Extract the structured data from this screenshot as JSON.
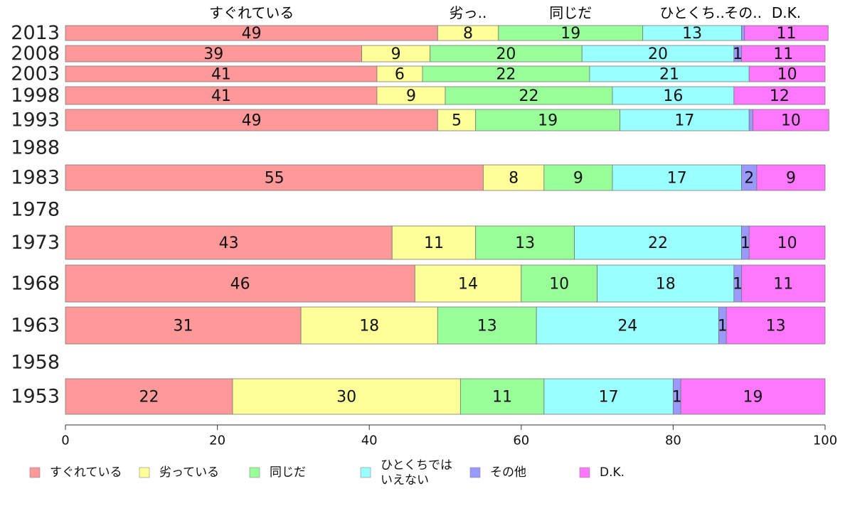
{
  "chart_data": {
    "type": "bar",
    "orientation": "horizontal",
    "stacked": true,
    "categories": [
      "2013",
      "2008",
      "2003",
      "1998",
      "1993",
      "1988",
      "1983",
      "1978",
      "1973",
      "1968",
      "1963",
      "1958",
      "1953"
    ],
    "top_labels": [
      "すぐれている",
      "劣っ..",
      "同じだ",
      "ひとくち..",
      "その..",
      "D.K."
    ],
    "series": [
      {
        "name": "すぐれている",
        "color": "#ff9999",
        "values": [
          49,
          39,
          41,
          41,
          49,
          null,
          55,
          null,
          43,
          46,
          31,
          null,
          22
        ]
      },
      {
        "name": "劣っている",
        "color": "#ffff99",
        "values": [
          8,
          9,
          6,
          9,
          5,
          null,
          8,
          null,
          11,
          14,
          18,
          null,
          30
        ]
      },
      {
        "name": "同じだ",
        "color": "#99ff99",
        "values": [
          19,
          20,
          22,
          22,
          19,
          null,
          9,
          null,
          13,
          10,
          13,
          null,
          11
        ]
      },
      {
        "name": "ひとくちではいえない",
        "color": "#99ffff",
        "values": [
          13,
          20,
          21,
          16,
          17,
          null,
          17,
          null,
          22,
          18,
          24,
          null,
          17
        ]
      },
      {
        "name": "その他",
        "color": "#9999ff",
        "values": [
          0.4,
          1,
          0,
          0,
          0.5,
          null,
          2,
          null,
          1,
          1,
          1,
          null,
          1
        ]
      },
      {
        "name": "D.K.",
        "color": "#ff77ff",
        "values": [
          11,
          11,
          10,
          12,
          10,
          null,
          9,
          null,
          10,
          11,
          13,
          null,
          19
        ]
      }
    ],
    "segment_labels": [
      [
        "49",
        "8",
        "19",
        "13",
        "",
        "11"
      ],
      [
        "39",
        "9",
        "20",
        "20",
        "1",
        "11"
      ],
      [
        "41",
        "6",
        "22",
        "21",
        "",
        "10"
      ],
      [
        "41",
        "9",
        "22",
        "16",
        "",
        "12"
      ],
      [
        "49",
        "5",
        "19",
        "17",
        "",
        "10"
      ],
      null,
      [
        "55",
        "8",
        "9",
        "17",
        "2",
        "9"
      ],
      null,
      [
        "43",
        "11",
        "13",
        "22",
        "1",
        "10"
      ],
      [
        "46",
        "14",
        "10",
        "18",
        "1",
        "11"
      ],
      [
        "31",
        "18",
        "13",
        "24",
        "1",
        "13"
      ],
      null,
      [
        "22",
        "30",
        "11",
        "17",
        "1",
        "19"
      ]
    ],
    "xticks": [
      "0",
      "20",
      "40",
      "60",
      "80",
      "100"
    ],
    "xlim": [
      0,
      100
    ],
    "grid": false,
    "legend": {
      "position": "bottom",
      "items": [
        {
          "lines": [
            "すぐれている"
          ],
          "color": "#ff9999"
        },
        {
          "lines": [
            "劣っている"
          ],
          "color": "#ffff99"
        },
        {
          "lines": [
            "同じだ"
          ],
          "color": "#99ff99"
        },
        {
          "lines": [
            "ひとくちでは",
            "いえない"
          ],
          "color": "#99ffff"
        },
        {
          "lines": [
            "その他"
          ],
          "color": "#9999ff"
        },
        {
          "lines": [
            "D.K."
          ],
          "color": "#ff77ff"
        }
      ]
    }
  }
}
